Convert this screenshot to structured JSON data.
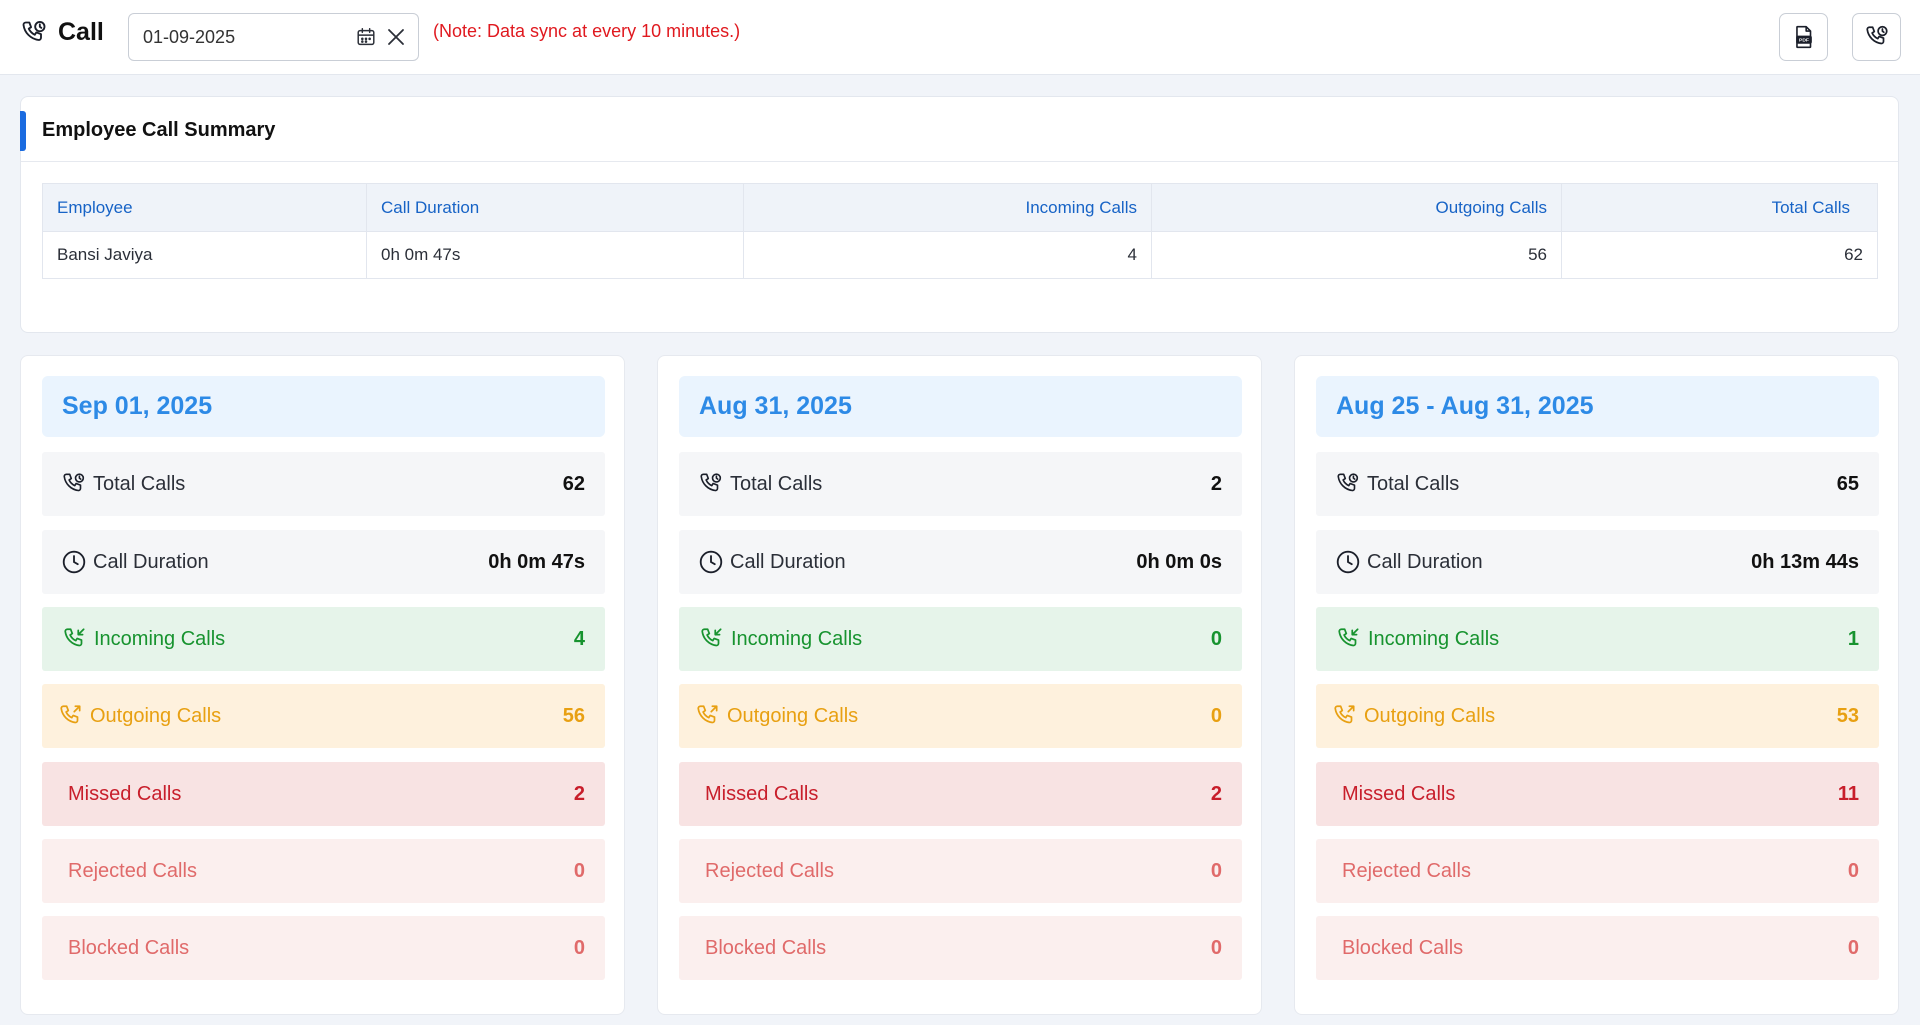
{
  "header": {
    "title": "Call",
    "date_value": "01-09-2025",
    "note": "(Note: Data sync at every 10 minutes.)",
    "icons": {
      "title": "phone-clock-icon",
      "calendar": "calendar-icon",
      "clear": "close-icon",
      "export": "pdf-export-icon",
      "call_log": "phone-clock-icon"
    }
  },
  "summary": {
    "title": "Employee Call Summary",
    "columns": [
      "Employee",
      "Call Duration",
      "Incoming Calls",
      "Outgoing Calls",
      "Total Calls"
    ],
    "rows": [
      [
        "Bansi Javiya",
        "0h 0m 47s",
        "4",
        "56",
        "62"
      ]
    ]
  },
  "cards": [
    {
      "heading": "Sep 01, 2025",
      "rows": [
        {
          "label": "Total Calls",
          "value": "62"
        },
        {
          "label": "Call Duration",
          "value": "0h 0m 47s"
        },
        {
          "label": "Incoming Calls",
          "value": "4"
        },
        {
          "label": "Outgoing Calls",
          "value": "56"
        },
        {
          "label": "Missed Calls",
          "value": "2"
        },
        {
          "label": "Rejected Calls",
          "value": "0"
        },
        {
          "label": "Blocked Calls",
          "value": "0"
        }
      ]
    },
    {
      "heading": "Aug 31, 2025",
      "rows": [
        {
          "label": "Total Calls",
          "value": "2"
        },
        {
          "label": "Call Duration",
          "value": "0h 0m 0s"
        },
        {
          "label": "Incoming Calls",
          "value": "0"
        },
        {
          "label": "Outgoing Calls",
          "value": "0"
        },
        {
          "label": "Missed Calls",
          "value": "2"
        },
        {
          "label": "Rejected Calls",
          "value": "0"
        },
        {
          "label": "Blocked Calls",
          "value": "0"
        }
      ]
    },
    {
      "heading": "Aug 25 - Aug 31, 2025",
      "rows": [
        {
          "label": "Total Calls",
          "value": "65"
        },
        {
          "label": "Call Duration",
          "value": "0h 13m 44s"
        },
        {
          "label": "Incoming Calls",
          "value": "1"
        },
        {
          "label": "Outgoing Calls",
          "value": "53"
        },
        {
          "label": "Missed Calls",
          "value": "11"
        },
        {
          "label": "Rejected Calls",
          "value": "0"
        },
        {
          "label": "Blocked Calls",
          "value": "0"
        }
      ]
    }
  ],
  "colors": {
    "accent": "#1a6be0",
    "heading_blue": "#2d8ae6",
    "incoming": "#17932f",
    "outgoing": "#e8a012",
    "missed": "#c81e2b",
    "rejected": "#e06a6a",
    "note_red": "#e0191f"
  }
}
